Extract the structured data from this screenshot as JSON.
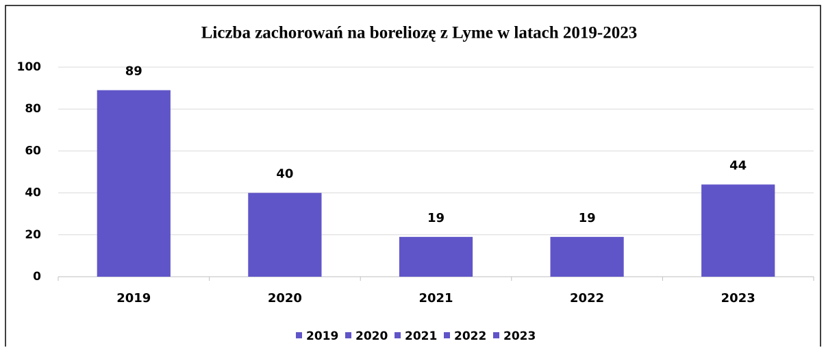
{
  "chart_data": {
    "type": "bar",
    "title": "Liczba zachorowań na boreliozę z Lyme w latach 2019-2023",
    "categories": [
      "2019",
      "2020",
      "2021",
      "2022",
      "2023"
    ],
    "values": [
      89,
      40,
      19,
      19,
      44
    ],
    "color": "#6055c8",
    "ylim": [
      0,
      100
    ],
    "yticks": [
      0,
      20,
      40,
      60,
      80,
      100
    ],
    "grid": true,
    "legend": "bottom"
  }
}
